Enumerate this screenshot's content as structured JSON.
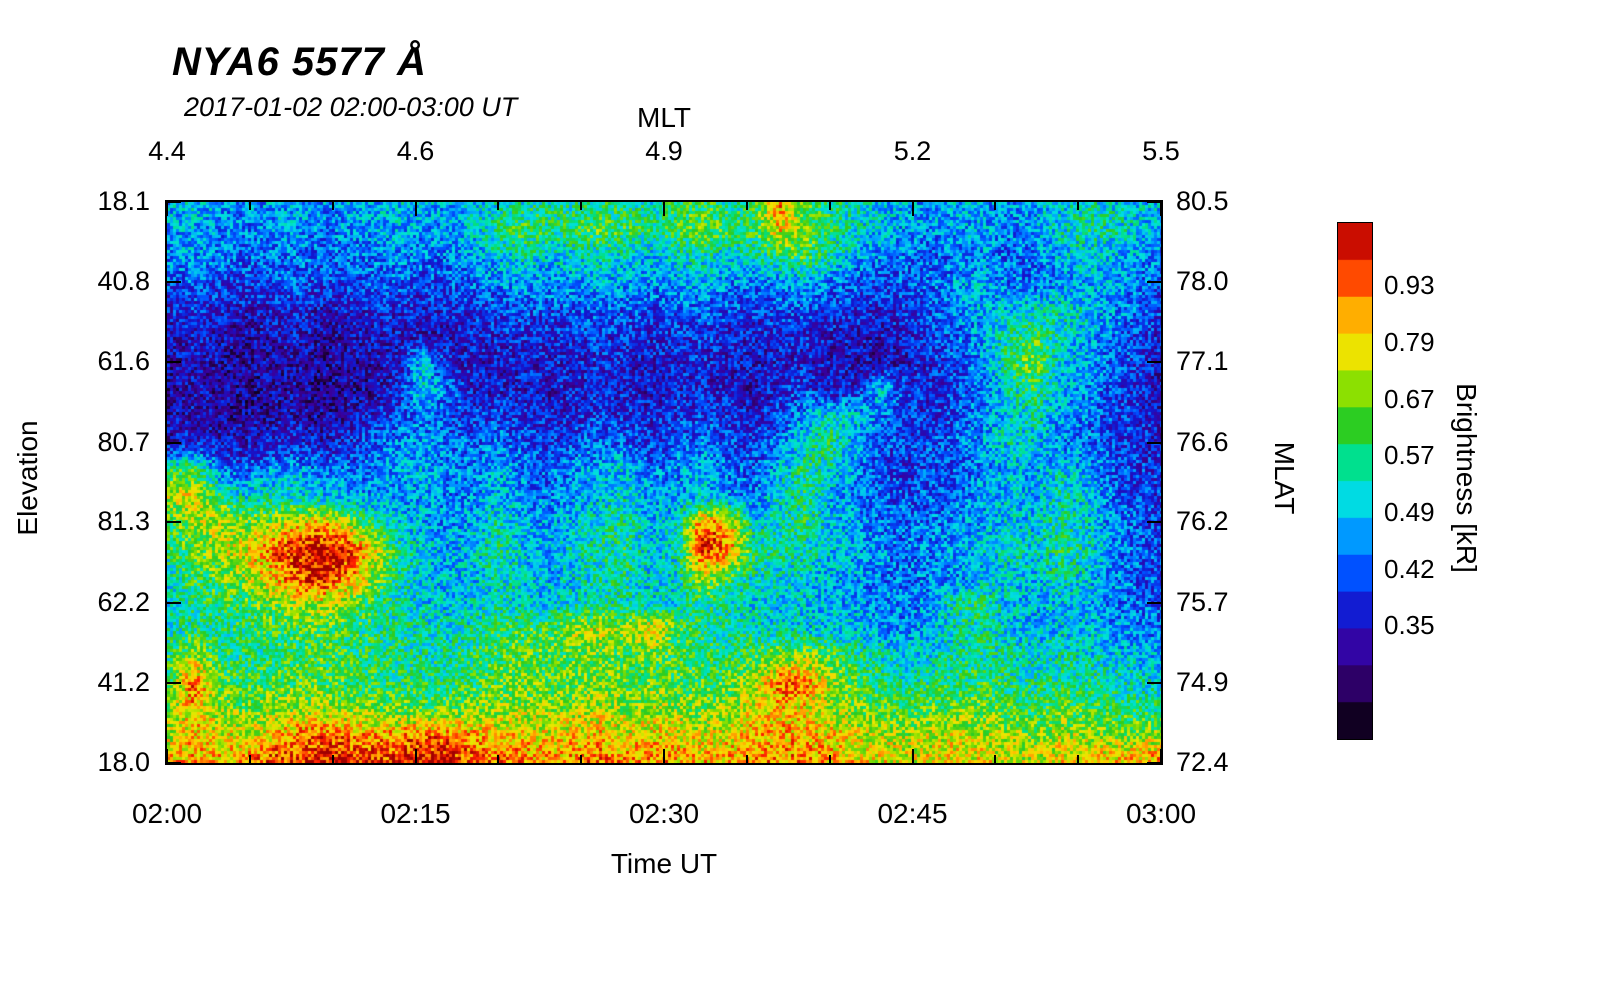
{
  "title": "NYA6 5577 Å",
  "subtitle": "2017-01-02 02:00-03:00 UT",
  "chart_data": {
    "type": "heatmap",
    "title": "NYA6 5577 Å",
    "subtitle": "2017-01-02 02:00-03:00 UT",
    "axes": {
      "top": {
        "label": "MLT",
        "ticks": [
          "4.4",
          "4.6",
          "4.9",
          "5.2",
          "5.5"
        ],
        "fractions": [
          0,
          0.25,
          0.5,
          0.75,
          1
        ]
      },
      "bottom": {
        "label": "Time UT",
        "ticks": [
          "02:00",
          "02:15",
          "02:30",
          "02:45",
          "03:00"
        ],
        "fractions": [
          0,
          0.25,
          0.5,
          0.75,
          1
        ]
      },
      "left": {
        "label": "Elevation",
        "ticks": [
          "18.1",
          "40.8",
          "61.6",
          "80.7",
          "81.3",
          "62.2",
          "41.2",
          "18.0"
        ],
        "fractions": [
          0,
          0.143,
          0.286,
          0.429,
          0.571,
          0.714,
          0.857,
          1
        ]
      },
      "right": {
        "label": "MLAT",
        "ticks": [
          "80.5",
          "78.0",
          "77.1",
          "76.6",
          "76.2",
          "75.7",
          "74.9",
          "72.4"
        ],
        "fractions": [
          0,
          0.143,
          0.286,
          0.429,
          0.571,
          0.714,
          0.857,
          1
        ]
      }
    },
    "colorbar": {
      "label": "Brightness [kR]",
      "ticks": [
        "0.93",
        "0.79",
        "0.67",
        "0.57",
        "0.49",
        "0.42",
        "0.35"
      ],
      "tick_fractions_from_top": [
        0.122,
        0.231,
        0.341,
        0.45,
        0.559,
        0.669,
        0.778
      ],
      "colormap": [
        [
          0.0,
          "#000000"
        ],
        [
          0.08,
          "#26004d"
        ],
        [
          0.16,
          "#3b0099"
        ],
        [
          0.24,
          "#1414cc"
        ],
        [
          0.32,
          "#0050ff"
        ],
        [
          0.4,
          "#00a0ff"
        ],
        [
          0.47,
          "#00e0e0"
        ],
        [
          0.54,
          "#00e089"
        ],
        [
          0.61,
          "#2ecc1e"
        ],
        [
          0.68,
          "#8ee000"
        ],
        [
          0.74,
          "#e8e800"
        ],
        [
          0.8,
          "#ffc800"
        ],
        [
          0.86,
          "#ff8000"
        ],
        [
          0.92,
          "#ff1e00"
        ],
        [
          1.0,
          "#a00000"
        ]
      ],
      "segments": 14
    },
    "grid": {
      "cols": 40,
      "rows": 22,
      "values": [
        [
          0.42,
          0.45,
          0.4,
          0.38,
          0.4,
          0.42,
          0.38,
          0.4,
          0.42,
          0.45,
          0.4,
          0.42,
          0.45,
          0.48,
          0.5,
          0.52,
          0.5,
          0.55,
          0.52,
          0.5,
          0.55,
          0.58,
          0.52,
          0.55,
          0.85,
          0.6,
          0.55,
          0.5,
          0.45,
          0.42,
          0.4,
          0.42,
          0.4,
          0.38,
          0.42,
          0.45,
          0.5,
          0.48,
          0.45,
          0.42
        ],
        [
          0.4,
          0.42,
          0.38,
          0.36,
          0.38,
          0.4,
          0.36,
          0.38,
          0.4,
          0.42,
          0.38,
          0.4,
          0.44,
          0.55,
          0.6,
          0.55,
          0.58,
          0.62,
          0.58,
          0.55,
          0.6,
          0.65,
          0.58,
          0.6,
          0.78,
          0.65,
          0.55,
          0.48,
          0.42,
          0.4,
          0.38,
          0.4,
          0.42,
          0.36,
          0.4,
          0.48,
          0.52,
          0.5,
          0.46,
          0.4
        ],
        [
          0.38,
          0.4,
          0.35,
          0.33,
          0.35,
          0.36,
          0.33,
          0.35,
          0.36,
          0.38,
          0.35,
          0.36,
          0.4,
          0.45,
          0.48,
          0.45,
          0.46,
          0.5,
          0.46,
          0.44,
          0.48,
          0.5,
          0.46,
          0.48,
          0.55,
          0.6,
          0.5,
          0.42,
          0.38,
          0.35,
          0.33,
          0.35,
          0.38,
          0.33,
          0.36,
          0.42,
          0.46,
          0.44,
          0.4,
          0.36
        ],
        [
          0.32,
          0.34,
          0.3,
          0.28,
          0.3,
          0.32,
          0.28,
          0.3,
          0.32,
          0.33,
          0.3,
          0.32,
          0.34,
          0.38,
          0.4,
          0.38,
          0.4,
          0.42,
          0.4,
          0.38,
          0.4,
          0.42,
          0.38,
          0.36,
          0.38,
          0.4,
          0.36,
          0.33,
          0.3,
          0.32,
          0.35,
          0.4,
          0.42,
          0.36,
          0.34,
          0.38,
          0.42,
          0.4,
          0.36,
          0.32
        ],
        [
          0.25,
          0.28,
          0.24,
          0.22,
          0.24,
          0.26,
          0.22,
          0.24,
          0.25,
          0.26,
          0.24,
          0.25,
          0.28,
          0.3,
          0.32,
          0.3,
          0.32,
          0.34,
          0.32,
          0.3,
          0.32,
          0.34,
          0.3,
          0.28,
          0.3,
          0.32,
          0.28,
          0.26,
          0.25,
          0.28,
          0.32,
          0.38,
          0.42,
          0.45,
          0.48,
          0.5,
          0.45,
          0.4,
          0.34,
          0.28
        ],
        [
          0.2,
          0.24,
          0.2,
          0.18,
          0.2,
          0.22,
          0.18,
          0.2,
          0.21,
          0.22,
          0.2,
          0.21,
          0.24,
          0.25,
          0.26,
          0.25,
          0.27,
          0.28,
          0.26,
          0.25,
          0.27,
          0.28,
          0.25,
          0.23,
          0.25,
          0.26,
          0.23,
          0.22,
          0.21,
          0.24,
          0.28,
          0.34,
          0.4,
          0.52,
          0.6,
          0.48,
          0.42,
          0.36,
          0.3,
          0.24
        ],
        [
          0.18,
          0.22,
          0.18,
          0.16,
          0.18,
          0.2,
          0.16,
          0.18,
          0.19,
          0.22,
          0.45,
          0.24,
          0.22,
          0.23,
          0.24,
          0.23,
          0.25,
          0.26,
          0.24,
          0.23,
          0.25,
          0.26,
          0.23,
          0.21,
          0.23,
          0.24,
          0.21,
          0.2,
          0.19,
          0.22,
          0.26,
          0.32,
          0.38,
          0.55,
          0.68,
          0.45,
          0.4,
          0.34,
          0.28,
          0.22
        ],
        [
          0.17,
          0.2,
          0.17,
          0.15,
          0.17,
          0.19,
          0.15,
          0.17,
          0.18,
          0.24,
          0.48,
          0.35,
          0.22,
          0.22,
          0.23,
          0.22,
          0.24,
          0.25,
          0.23,
          0.22,
          0.24,
          0.25,
          0.22,
          0.2,
          0.25,
          0.3,
          0.22,
          0.24,
          0.45,
          0.28,
          0.25,
          0.3,
          0.36,
          0.48,
          0.55,
          0.42,
          0.38,
          0.32,
          0.26,
          0.2
        ],
        [
          0.18,
          0.22,
          0.18,
          0.16,
          0.18,
          0.2,
          0.17,
          0.2,
          0.25,
          0.3,
          0.35,
          0.3,
          0.28,
          0.3,
          0.26,
          0.24,
          0.26,
          0.28,
          0.26,
          0.25,
          0.28,
          0.3,
          0.27,
          0.25,
          0.3,
          0.4,
          0.5,
          0.45,
          0.35,
          0.26,
          0.27,
          0.32,
          0.38,
          0.45,
          0.5,
          0.4,
          0.36,
          0.3,
          0.26,
          0.22
        ],
        [
          0.2,
          0.25,
          0.22,
          0.2,
          0.24,
          0.26,
          0.22,
          0.26,
          0.32,
          0.38,
          0.4,
          0.35,
          0.33,
          0.36,
          0.3,
          0.28,
          0.32,
          0.36,
          0.32,
          0.28,
          0.32,
          0.36,
          0.3,
          0.28,
          0.35,
          0.48,
          0.55,
          0.42,
          0.32,
          0.28,
          0.3,
          0.34,
          0.4,
          0.48,
          0.44,
          0.38,
          0.34,
          0.3,
          0.27,
          0.24
        ],
        [
          0.55,
          0.6,
          0.35,
          0.32,
          0.38,
          0.42,
          0.36,
          0.34,
          0.36,
          0.4,
          0.42,
          0.38,
          0.36,
          0.42,
          0.35,
          0.32,
          0.38,
          0.42,
          0.45,
          0.35,
          0.38,
          0.42,
          0.35,
          0.32,
          0.42,
          0.55,
          0.48,
          0.38,
          0.3,
          0.28,
          0.3,
          0.33,
          0.38,
          0.42,
          0.4,
          0.45,
          0.42,
          0.34,
          0.29,
          0.26
        ],
        [
          0.7,
          0.75,
          0.6,
          0.48,
          0.5,
          0.48,
          0.45,
          0.42,
          0.4,
          0.38,
          0.4,
          0.36,
          0.38,
          0.44,
          0.38,
          0.35,
          0.4,
          0.44,
          0.48,
          0.38,
          0.4,
          0.45,
          0.38,
          0.36,
          0.48,
          0.52,
          0.42,
          0.36,
          0.32,
          0.3,
          0.32,
          0.35,
          0.4,
          0.44,
          0.42,
          0.5,
          0.45,
          0.36,
          0.3,
          0.27
        ],
        [
          0.6,
          0.68,
          0.72,
          0.65,
          0.68,
          0.75,
          0.8,
          0.72,
          0.55,
          0.45,
          0.42,
          0.38,
          0.42,
          0.5,
          0.42,
          0.4,
          0.45,
          0.5,
          0.52,
          0.42,
          0.48,
          0.88,
          0.8,
          0.45,
          0.5,
          0.55,
          0.45,
          0.4,
          0.35,
          0.33,
          0.35,
          0.38,
          0.42,
          0.46,
          0.44,
          0.52,
          0.48,
          0.38,
          0.32,
          0.28
        ],
        [
          0.55,
          0.62,
          0.7,
          0.75,
          0.85,
          0.95,
          1.0,
          0.95,
          0.75,
          0.55,
          0.45,
          0.42,
          0.45,
          0.52,
          0.45,
          0.42,
          0.48,
          0.52,
          0.55,
          0.45,
          0.5,
          0.95,
          0.85,
          0.55,
          0.52,
          0.5,
          0.45,
          0.42,
          0.38,
          0.35,
          0.37,
          0.4,
          0.44,
          0.48,
          0.46,
          0.54,
          0.5,
          0.4,
          0.34,
          0.3
        ],
        [
          0.5,
          0.58,
          0.62,
          0.68,
          0.78,
          0.9,
          0.95,
          0.85,
          0.68,
          0.52,
          0.45,
          0.42,
          0.44,
          0.5,
          0.44,
          0.42,
          0.46,
          0.5,
          0.52,
          0.44,
          0.48,
          0.7,
          0.6,
          0.5,
          0.48,
          0.46,
          0.42,
          0.4,
          0.36,
          0.34,
          0.36,
          0.38,
          0.42,
          0.46,
          0.44,
          0.5,
          0.46,
          0.38,
          0.33,
          0.3
        ],
        [
          0.48,
          0.54,
          0.56,
          0.6,
          0.65,
          0.7,
          0.72,
          0.65,
          0.58,
          0.5,
          0.46,
          0.44,
          0.46,
          0.5,
          0.46,
          0.44,
          0.48,
          0.52,
          0.5,
          0.46,
          0.48,
          0.55,
          0.5,
          0.46,
          0.45,
          0.44,
          0.42,
          0.4,
          0.37,
          0.36,
          0.4,
          0.52,
          0.55,
          0.44,
          0.42,
          0.44,
          0.42,
          0.38,
          0.34,
          0.32
        ],
        [
          0.5,
          0.55,
          0.54,
          0.56,
          0.58,
          0.6,
          0.62,
          0.58,
          0.55,
          0.52,
          0.5,
          0.48,
          0.52,
          0.58,
          0.6,
          0.62,
          0.7,
          0.72,
          0.68,
          0.8,
          0.6,
          0.55,
          0.52,
          0.5,
          0.48,
          0.46,
          0.45,
          0.44,
          0.4,
          0.38,
          0.42,
          0.5,
          0.52,
          0.45,
          0.43,
          0.45,
          0.44,
          0.4,
          0.37,
          0.35
        ],
        [
          0.55,
          0.7,
          0.56,
          0.55,
          0.56,
          0.58,
          0.6,
          0.58,
          0.56,
          0.54,
          0.52,
          0.52,
          0.55,
          0.6,
          0.62,
          0.6,
          0.62,
          0.64,
          0.6,
          0.62,
          0.58,
          0.56,
          0.55,
          0.6,
          0.65,
          0.68,
          0.62,
          0.55,
          0.5,
          0.46,
          0.48,
          0.52,
          0.54,
          0.5,
          0.48,
          0.5,
          0.48,
          0.46,
          0.44,
          0.42
        ],
        [
          0.6,
          0.9,
          0.62,
          0.58,
          0.6,
          0.62,
          0.62,
          0.6,
          0.58,
          0.56,
          0.55,
          0.56,
          0.58,
          0.62,
          0.64,
          0.62,
          0.64,
          0.66,
          0.62,
          0.64,
          0.62,
          0.6,
          0.62,
          0.7,
          0.88,
          0.85,
          0.7,
          0.6,
          0.55,
          0.52,
          0.54,
          0.56,
          0.58,
          0.54,
          0.52,
          0.55,
          0.54,
          0.52,
          0.5,
          0.48
        ],
        [
          0.65,
          0.8,
          0.68,
          0.65,
          0.68,
          0.7,
          0.7,
          0.68,
          0.66,
          0.64,
          0.62,
          0.64,
          0.66,
          0.68,
          0.7,
          0.68,
          0.7,
          0.72,
          0.68,
          0.7,
          0.68,
          0.66,
          0.68,
          0.74,
          0.78,
          0.75,
          0.7,
          0.66,
          0.62,
          0.6,
          0.62,
          0.64,
          0.64,
          0.6,
          0.58,
          0.62,
          0.6,
          0.58,
          0.56,
          0.55
        ],
        [
          0.72,
          0.78,
          0.75,
          0.74,
          0.78,
          0.85,
          0.88,
          0.85,
          0.82,
          0.85,
          0.88,
          0.85,
          0.82,
          0.8,
          0.78,
          0.76,
          0.78,
          0.8,
          0.76,
          0.78,
          0.76,
          0.74,
          0.76,
          0.8,
          0.82,
          0.8,
          0.78,
          0.74,
          0.72,
          0.7,
          0.72,
          0.74,
          0.72,
          0.7,
          0.68,
          0.72,
          0.7,
          0.68,
          0.68,
          0.7
        ],
        [
          0.8,
          0.85,
          0.82,
          0.85,
          0.9,
          0.95,
          0.98,
          0.95,
          0.92,
          0.95,
          0.98,
          0.95,
          0.9,
          0.88,
          0.85,
          0.82,
          0.85,
          0.88,
          0.84,
          0.85,
          0.82,
          0.8,
          0.82,
          0.85,
          0.86,
          0.84,
          0.82,
          0.78,
          0.76,
          0.74,
          0.76,
          0.78,
          0.76,
          0.74,
          0.72,
          0.76,
          0.78,
          0.8,
          0.82,
          0.85
        ]
      ]
    },
    "noise": 0.26
  }
}
